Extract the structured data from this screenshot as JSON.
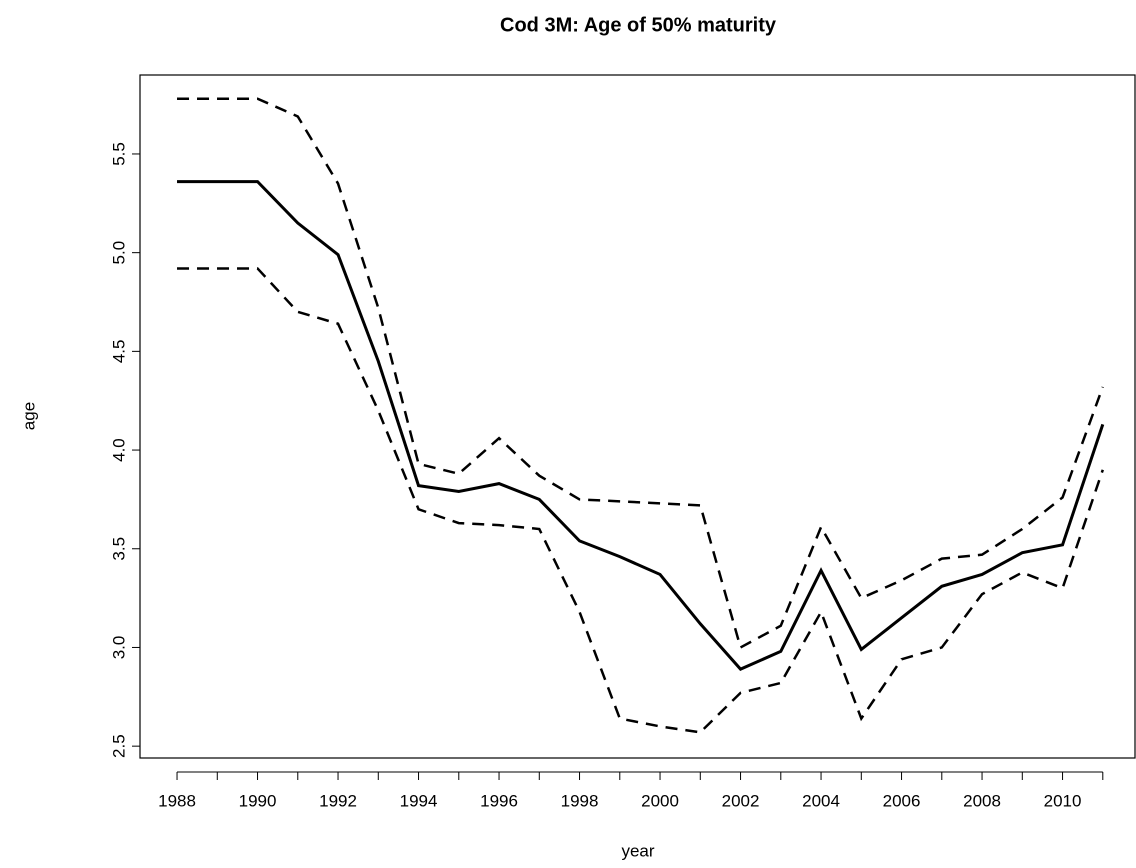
{
  "chart_data": {
    "type": "line",
    "title": "Cod 3M: Age of 50% maturity",
    "xlabel": "year",
    "ylabel": "age",
    "x": [
      1988,
      1989,
      1990,
      1991,
      1992,
      1993,
      1994,
      1995,
      1996,
      1997,
      1998,
      1999,
      2000,
      2001,
      2002,
      2003,
      2004,
      2005,
      2006,
      2007,
      2008,
      2009,
      2010,
      2011
    ],
    "series": [
      {
        "color": "#000000",
        "linestyle": "solid",
        "values": [
          5.36,
          5.36,
          5.36,
          5.15,
          4.99,
          4.45,
          3.82,
          3.79,
          3.83,
          3.75,
          3.54,
          3.46,
          3.37,
          3.12,
          2.89,
          2.98,
          3.39,
          2.99,
          3.15,
          3.31,
          3.37,
          3.48,
          3.52,
          4.13
        ]
      },
      {
        "color": "#000000",
        "linestyle": "dashed",
        "values": [
          5.78,
          5.78,
          5.78,
          5.69,
          5.35,
          4.72,
          3.93,
          3.88,
          4.06,
          3.87,
          3.75,
          3.74,
          3.73,
          3.72,
          3.0,
          3.11,
          3.61,
          3.25,
          3.34,
          3.45,
          3.47,
          3.6,
          3.76,
          4.32
        ]
      },
      {
        "color": "#000000",
        "linestyle": "dashed",
        "values": [
          4.92,
          4.92,
          4.92,
          4.7,
          4.64,
          4.2,
          3.7,
          3.63,
          3.62,
          3.6,
          3.18,
          2.64,
          2.6,
          2.57,
          2.77,
          2.82,
          3.18,
          2.64,
          2.94,
          3.0,
          3.27,
          3.38,
          3.3,
          3.9
        ]
      }
    ],
    "xlim": [
      1987.08,
      2011.8
    ],
    "ylim": [
      2.44,
      5.9
    ],
    "xticks": [
      1988,
      1990,
      1992,
      1994,
      1996,
      1998,
      2000,
      2002,
      2004,
      2006,
      2008,
      2010
    ],
    "xminor_ticks": [
      1989,
      1991,
      1993,
      1995,
      1997,
      1999,
      2001,
      2003,
      2005,
      2007,
      2009,
      2011
    ],
    "yticks": [
      {
        "value": 2.5,
        "label": "2.5"
      },
      {
        "value": 3,
        "label": "3.0"
      },
      {
        "value": 3.5,
        "label": "3.5"
      },
      {
        "value": 4,
        "label": "4.0"
      },
      {
        "value": 4.5,
        "label": "4.5"
      },
      {
        "value": 5,
        "label": "5.0"
      },
      {
        "value": 5.5,
        "label": "5.5"
      }
    ],
    "grid": false
  }
}
